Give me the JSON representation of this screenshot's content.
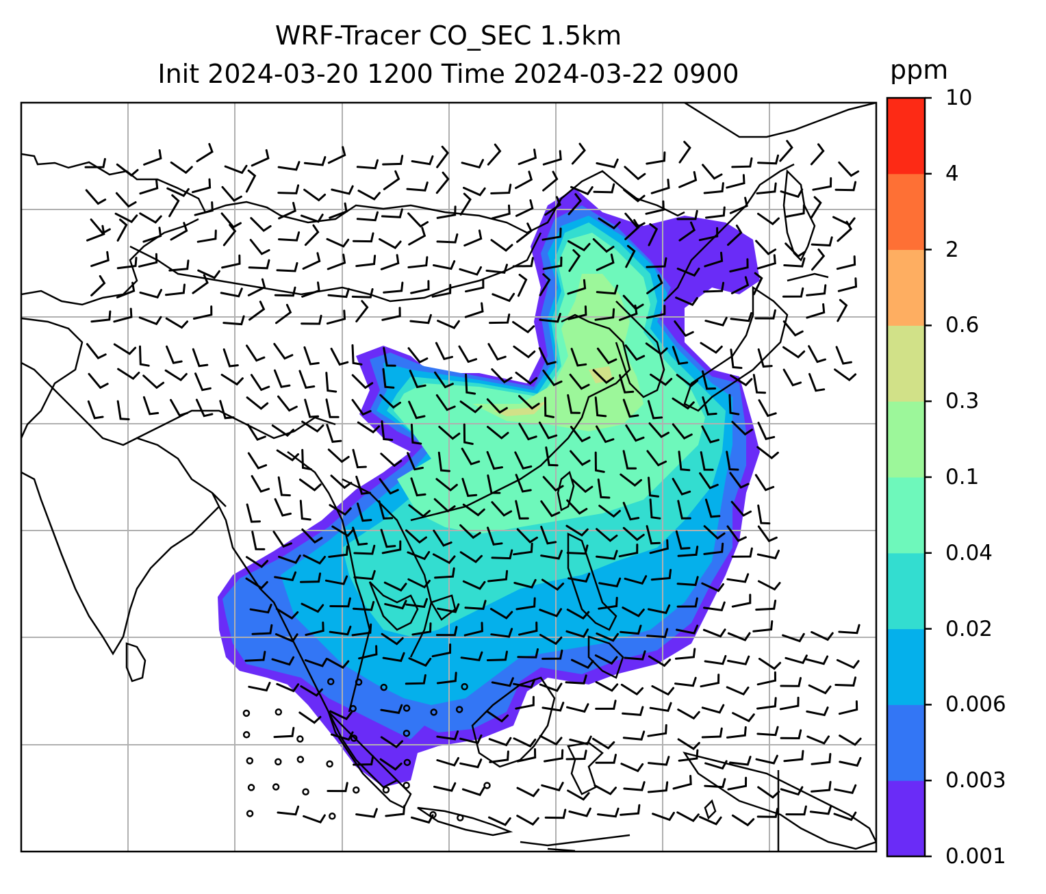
{
  "title_line1": "WRF-Tracer CO_SEC 1.5km",
  "title_line2": "Init 2024-03-20 1200 Time 2024-03-22 0900",
  "colorbar": {
    "unit": "ppm",
    "levels": [
      {
        "label": "0.001",
        "color": "#6a2cf7"
      },
      {
        "label": "0.003",
        "color": "#3376f5"
      },
      {
        "label": "0.006",
        "color": "#05b0eb"
      },
      {
        "label": "0.02",
        "color": "#33ddd0"
      },
      {
        "label": "0.04",
        "color": "#6ef8bb"
      },
      {
        "label": "0.1",
        "color": "#9cf79a"
      },
      {
        "label": "0.3",
        "color": "#d1e188"
      },
      {
        "label": "0.6",
        "color": "#feae61"
      },
      {
        "label": "2",
        "color": "#fe7035"
      },
      {
        "label": "4",
        "color": "#fd2a15"
      },
      {
        "label": "10",
        "color": null
      }
    ]
  },
  "map": {
    "gridlines": true,
    "coastline_color": "#000000",
    "grid_color": "#b0b0b0"
  }
}
